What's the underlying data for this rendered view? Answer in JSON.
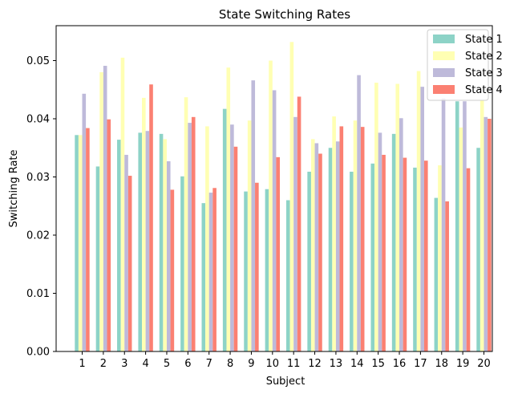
{
  "chart_data": {
    "type": "bar",
    "title": "State Switching Rates",
    "xlabel": "Subject",
    "ylabel": "Switching Rate",
    "ylim": [
      0,
      0.056
    ],
    "yticks": [
      "0.00",
      "0.01",
      "0.02",
      "0.03",
      "0.04",
      "0.05"
    ],
    "ytick_values": [
      0,
      0.01,
      0.02,
      0.03,
      0.04,
      0.05
    ],
    "categories": [
      "1",
      "2",
      "3",
      "4",
      "5",
      "6",
      "7",
      "8",
      "9",
      "10",
      "11",
      "12",
      "13",
      "14",
      "15",
      "16",
      "17",
      "18",
      "19",
      "20"
    ],
    "legend_position": "top-right",
    "grid": false,
    "series": [
      {
        "name": "State 1",
        "color": "#8dd3c7",
        "values": [
          0.0372,
          0.0318,
          0.0364,
          0.0376,
          0.0374,
          0.0301,
          0.0255,
          0.0417,
          0.0275,
          0.0279,
          0.026,
          0.0309,
          0.035,
          0.0309,
          0.0323,
          0.0374,
          0.0316,
          0.0264,
          0.043,
          0.035
        ]
      },
      {
        "name": "State 2",
        "color": "#ffffb3",
        "values": [
          0.0372,
          0.048,
          0.0505,
          0.0436,
          0.0365,
          0.0437,
          0.0387,
          0.0488,
          0.0397,
          0.05,
          0.0532,
          0.0365,
          0.0404,
          0.0397,
          0.0462,
          0.046,
          0.0482,
          0.032,
          0.0385,
          0.0432
        ]
      },
      {
        "name": "State 3",
        "color": "#bebada",
        "values": [
          0.0443,
          0.0491,
          0.0338,
          0.0379,
          0.0327,
          0.0393,
          0.0273,
          0.039,
          0.0466,
          0.0449,
          0.0403,
          0.0358,
          0.0361,
          0.0475,
          0.0376,
          0.0401,
          0.0455,
          0.0435,
          0.043,
          0.0403
        ]
      },
      {
        "name": "State 4",
        "color": "#fb8072",
        "values": [
          0.0384,
          0.0399,
          0.0302,
          0.0459,
          0.0278,
          0.0403,
          0.0281,
          0.0352,
          0.029,
          0.0334,
          0.0438,
          0.034,
          0.0387,
          0.0386,
          0.0338,
          0.0333,
          0.0328,
          0.0258,
          0.0315,
          0.04
        ]
      }
    ]
  }
}
